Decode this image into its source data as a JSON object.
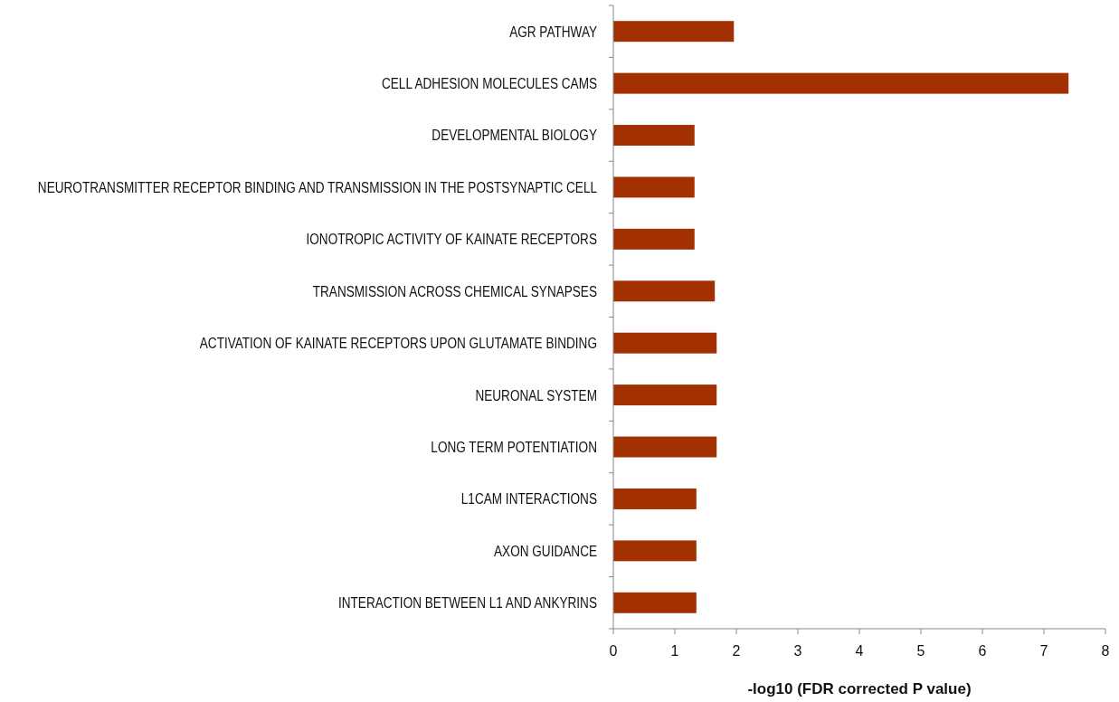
{
  "chart_data": {
    "type": "bar",
    "orientation": "horizontal",
    "xlabel": "-log10 (FDR corrected P value)",
    "categories": [
      "AGR PATHWAY",
      "CELL ADHESION MOLECULES CAMS",
      "DEVELOPMENTAL BIOLOGY",
      "NEUROTRANSMITTER RECEPTOR BINDING AND TRANSMISSION IN THE POSTSYNAPTIC CELL",
      "IONOTROPIC ACTIVITY OF KAINATE RECEPTORS",
      "TRANSMISSION ACROSS CHEMICAL SYNAPSES",
      "ACTIVATION OF KAINATE RECEPTORS UPON GLUTAMATE BINDING",
      "NEURONAL SYSTEM",
      "LONG TERM POTENTIATION",
      "L1CAM INTERACTIONS",
      "AXON GUIDANCE",
      "INTERACTION BETWEEN L1 AND ANKYRINS"
    ],
    "values": [
      1.96,
      7.4,
      1.32,
      1.32,
      1.32,
      1.65,
      1.68,
      1.68,
      1.68,
      1.35,
      1.35,
      1.35
    ],
    "color": "#a33000",
    "xlim": [
      0,
      8
    ],
    "xticks": [
      0,
      1,
      2,
      3,
      4,
      5,
      6,
      7,
      8
    ],
    "grid": false
  }
}
